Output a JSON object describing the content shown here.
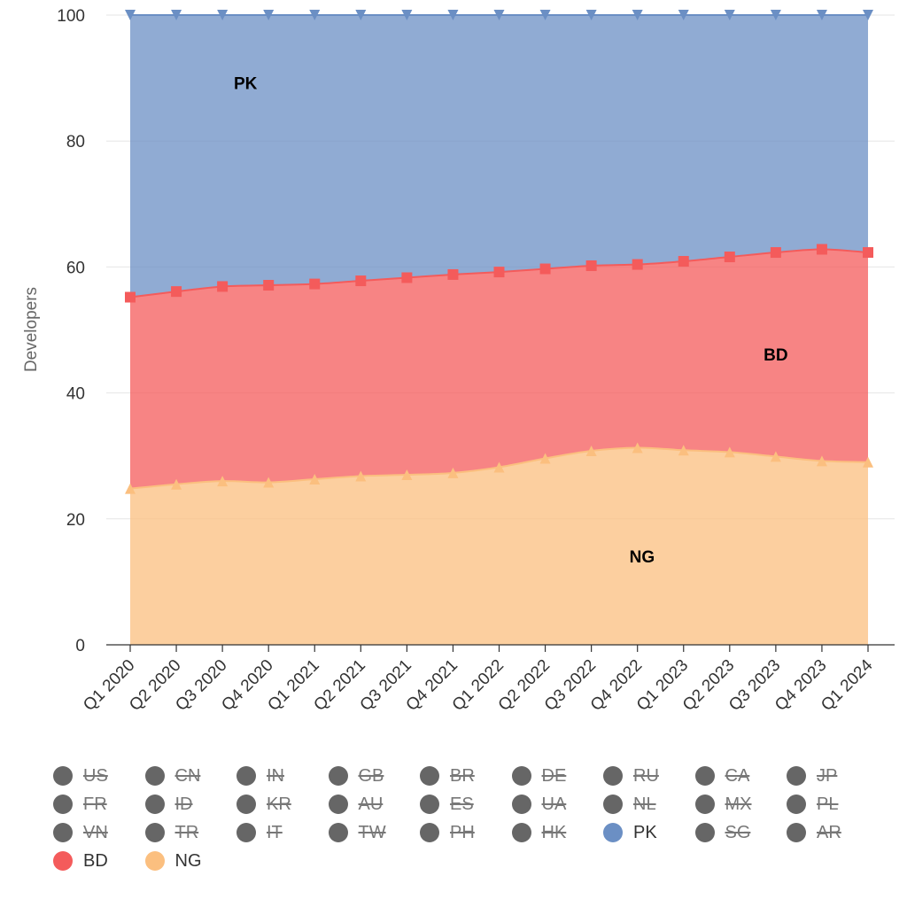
{
  "chart_data": {
    "type": "area",
    "stacking": "percent",
    "title": "",
    "xlabel": "",
    "ylabel": "Developers",
    "ylim": [
      0,
      100
    ],
    "yticks": [
      0,
      20,
      40,
      60,
      80,
      100
    ],
    "categories": [
      "Q1 2020",
      "Q2 2020",
      "Q3 2020",
      "Q4 2020",
      "Q1 2021",
      "Q2 2021",
      "Q3 2021",
      "Q4 2021",
      "Q1 2022",
      "Q2 2022",
      "Q3 2022",
      "Q4 2022",
      "Q1 2023",
      "Q2 2023",
      "Q3 2023",
      "Q4 2023",
      "Q1 2024"
    ],
    "series": [
      {
        "name": "NG",
        "color": "#fbbf7f",
        "marker": "triangle",
        "values": [
          24.8,
          25.5,
          26.0,
          25.8,
          26.3,
          26.8,
          27.0,
          27.3,
          28.2,
          29.6,
          30.8,
          31.3,
          30.9,
          30.6,
          29.9,
          29.2,
          29.0
        ]
      },
      {
        "name": "BD",
        "color": "#f45b5b",
        "marker": "square",
        "values": [
          30.4,
          30.6,
          30.9,
          31.3,
          31.0,
          31.0,
          31.3,
          31.5,
          31.0,
          30.1,
          29.4,
          29.1,
          30.0,
          31.0,
          32.4,
          33.6,
          33.3
        ]
      },
      {
        "name": "PK",
        "color": "#6b8fc4",
        "marker": "triangle-down",
        "values": [
          44.8,
          43.9,
          43.1,
          42.9,
          42.7,
          42.2,
          41.7,
          41.2,
          40.8,
          40.3,
          39.8,
          39.6,
          39.1,
          38.4,
          37.7,
          37.2,
          37.7
        ]
      }
    ],
    "area_labels": [
      {
        "series": "PK",
        "text": "PK"
      },
      {
        "series": "BD",
        "text": "BD"
      },
      {
        "series": "NG",
        "text": "NG"
      }
    ],
    "legend": {
      "placement": "bottom",
      "items": [
        {
          "label": "US",
          "color": "#666666",
          "visible": false
        },
        {
          "label": "CN",
          "color": "#666666",
          "visible": false
        },
        {
          "label": "IN",
          "color": "#666666",
          "visible": false
        },
        {
          "label": "GB",
          "color": "#666666",
          "visible": false
        },
        {
          "label": "BR",
          "color": "#666666",
          "visible": false
        },
        {
          "label": "DE",
          "color": "#666666",
          "visible": false
        },
        {
          "label": "RU",
          "color": "#666666",
          "visible": false
        },
        {
          "label": "CA",
          "color": "#666666",
          "visible": false
        },
        {
          "label": "JP",
          "color": "#666666",
          "visible": false
        },
        {
          "label": "FR",
          "color": "#666666",
          "visible": false
        },
        {
          "label": "ID",
          "color": "#666666",
          "visible": false
        },
        {
          "label": "KR",
          "color": "#666666",
          "visible": false
        },
        {
          "label": "AU",
          "color": "#666666",
          "visible": false
        },
        {
          "label": "ES",
          "color": "#666666",
          "visible": false
        },
        {
          "label": "UA",
          "color": "#666666",
          "visible": false
        },
        {
          "label": "NL",
          "color": "#666666",
          "visible": false
        },
        {
          "label": "MX",
          "color": "#666666",
          "visible": false
        },
        {
          "label": "PL",
          "color": "#666666",
          "visible": false
        },
        {
          "label": "VN",
          "color": "#666666",
          "visible": false
        },
        {
          "label": "TR",
          "color": "#666666",
          "visible": false
        },
        {
          "label": "IT",
          "color": "#666666",
          "visible": false
        },
        {
          "label": "TW",
          "color": "#666666",
          "visible": false
        },
        {
          "label": "PH",
          "color": "#666666",
          "visible": false
        },
        {
          "label": "HK",
          "color": "#666666",
          "visible": false
        },
        {
          "label": "PK",
          "color": "#6b8fc4",
          "visible": true
        },
        {
          "label": "SG",
          "color": "#666666",
          "visible": false
        },
        {
          "label": "AR",
          "color": "#666666",
          "visible": false
        },
        {
          "label": "BD",
          "color": "#f45b5b",
          "visible": true
        },
        {
          "label": "NG",
          "color": "#fbbf7f",
          "visible": true
        }
      ]
    },
    "grid": true
  }
}
